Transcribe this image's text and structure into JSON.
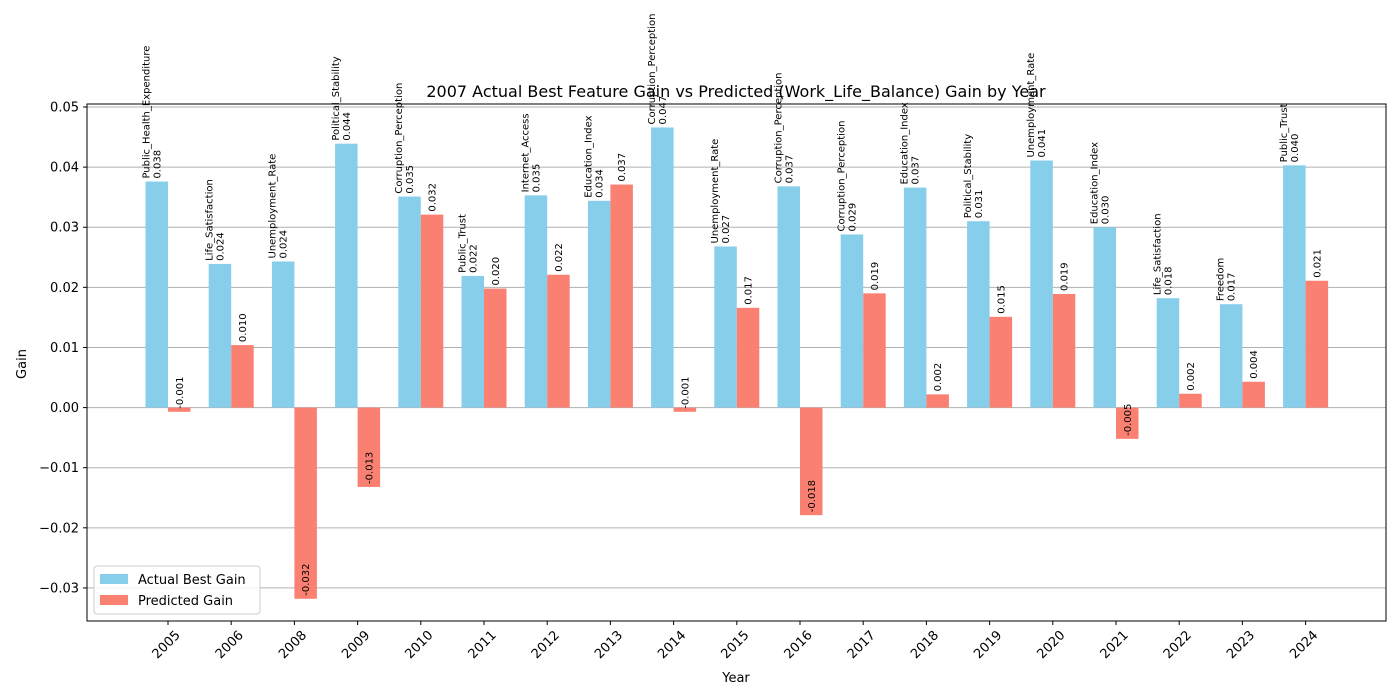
{
  "chart_data": {
    "type": "bar",
    "title": "2007 Actual Best Feature Gain vs Predicted (Work_Life_Balance) Gain by Year",
    "xlabel": "Year",
    "ylabel": "Gain",
    "ylim": [
      -0.0355,
      0.0505
    ],
    "yticks": [
      -0.03,
      -0.02,
      -0.01,
      0.0,
      0.01,
      0.02,
      0.03,
      0.04,
      0.05
    ],
    "ytick_labels": [
      "−0.03",
      "−0.02",
      "−0.01",
      "0.00",
      "0.01",
      "0.02",
      "0.03",
      "0.04",
      "0.05"
    ],
    "grid": "horizontal",
    "legend_position": "lower-left",
    "categories": [
      "2005",
      "2006",
      "2008",
      "2009",
      "2010",
      "2011",
      "2012",
      "2013",
      "2014",
      "2015",
      "2016",
      "2017",
      "2018",
      "2019",
      "2020",
      "2021",
      "2022",
      "2023",
      "2024"
    ],
    "series": [
      {
        "name": "Actual Best Gain",
        "color": "#87ceeb",
        "values": [
          0.0376,
          0.0239,
          0.0243,
          0.0439,
          0.0351,
          0.0219,
          0.0353,
          0.0344,
          0.0466,
          0.0268,
          0.0368,
          0.0288,
          0.0366,
          0.031,
          0.0411,
          0.03,
          0.0182,
          0.0172,
          0.0403
        ],
        "value_labels": [
          "0.038",
          "0.024",
          "0.024",
          "0.044",
          "0.035",
          "0.022",
          "0.035",
          "0.034",
          "0.047",
          "0.027",
          "0.037",
          "0.029",
          "0.037",
          "0.031",
          "0.041",
          "0.030",
          "0.018",
          "0.017",
          "0.040"
        ],
        "features": [
          "Public_Health_Expenditure",
          "Life_Satisfaction",
          "Unemployment_Rate",
          "Political_Stability",
          "Corruption_Perception",
          "Public_Trust",
          "Internet_Access",
          "Education_Index",
          "Corruption_Perception",
          "Unemployment_Rate",
          "Corruption_Perception",
          "Corruption_Perception",
          "Education_Index",
          "Political_Stability",
          "Unemployment_Rate",
          "Education_Index",
          "Life_Satisfaction",
          "Freedom",
          "Public_Trust"
        ]
      },
      {
        "name": "Predicted Gain",
        "color": "#fa8072",
        "values": [
          -0.0007,
          0.0104,
          -0.0318,
          -0.0132,
          0.0321,
          0.0198,
          0.0221,
          0.0371,
          -0.0007,
          0.0166,
          -0.0179,
          0.019,
          0.0022,
          0.0151,
          0.0189,
          -0.0052,
          0.0023,
          0.0043,
          0.0211
        ],
        "value_labels": [
          "-0.001",
          "0.010",
          "-0.032",
          "-0.013",
          "0.032",
          "0.020",
          "0.022",
          "0.037",
          "-0.001",
          "0.017",
          "-0.018",
          "0.019",
          "0.002",
          "0.015",
          "0.019",
          "-0.005",
          "0.002",
          "0.004",
          "0.021"
        ]
      }
    ]
  }
}
